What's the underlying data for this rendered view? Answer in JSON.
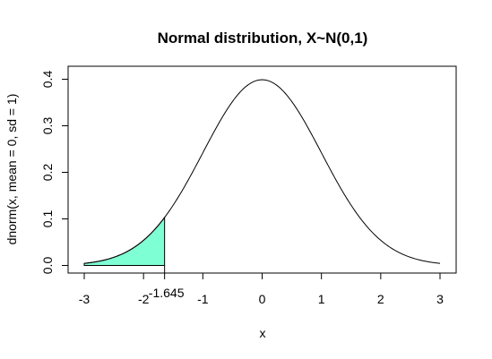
{
  "chart_data": {
    "type": "area",
    "title": "Normal distribution, X~N(0,1)",
    "xlabel": "x",
    "ylabel": "dnorm(x, mean = 0, sd = 1)",
    "xlim": [
      -3,
      3
    ],
    "ylim": [
      0,
      0.4
    ],
    "x_ticks": [
      "-3",
      "-2",
      "-1",
      "0",
      "1",
      "2",
      "3"
    ],
    "y_ticks": [
      "0.0",
      "0.1",
      "0.2",
      "0.3",
      "0.4"
    ],
    "curve": {
      "function": "standard normal density",
      "mean": 0,
      "sd": 1,
      "x": [
        -3,
        -2.5,
        -2,
        -1.5,
        -1,
        -0.5,
        0,
        0.5,
        1,
        1.5,
        2,
        2.5,
        3
      ],
      "y": [
        0.0044,
        0.0175,
        0.054,
        0.1295,
        0.242,
        0.3521,
        0.3989,
        0.3521,
        0.242,
        0.1295,
        0.054,
        0.0175,
        0.0044
      ],
      "color": "#000000"
    },
    "shaded_region": {
      "from": -3,
      "to": -1.645,
      "fill": "#7fffd4"
    },
    "annotation": {
      "x": -1.645,
      "label": "-1.645"
    },
    "grid": false,
    "legend": "none"
  }
}
